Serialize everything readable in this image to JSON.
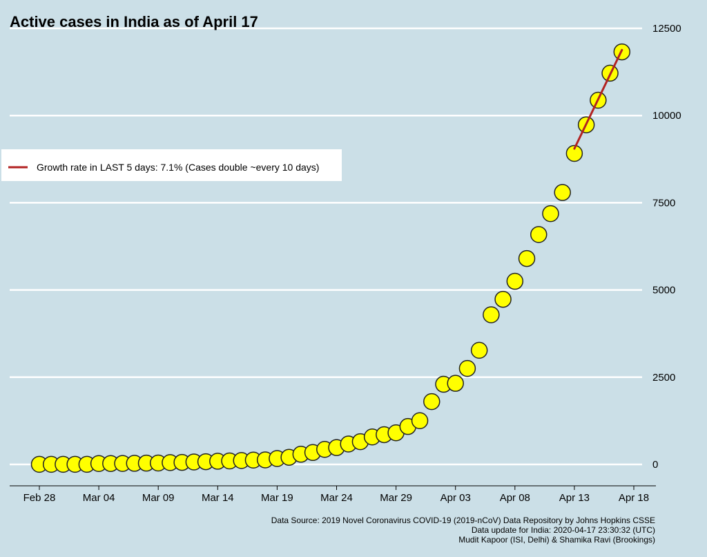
{
  "chart_data": {
    "type": "scatter",
    "title": "Active cases in India as of April 17",
    "xlabel": "",
    "ylabel": "",
    "ylim": [
      -600,
      12500
    ],
    "y_ticks": [
      0,
      2500,
      5000,
      7500,
      10000,
      12500
    ],
    "x_ticks": [
      "Feb 28",
      "Mar 04",
      "Mar 09",
      "Mar 14",
      "Mar 19",
      "Mar 24",
      "Mar 29",
      "Apr 03",
      "Apr 08",
      "Apr 13",
      "Apr 18"
    ],
    "grid": "horizontal",
    "start_date": "2020-02-28",
    "series": [
      {
        "x": [
          "2020-02-28",
          "2020-02-29",
          "2020-03-01",
          "2020-03-02",
          "2020-03-03",
          "2020-03-04",
          "2020-03-05",
          "2020-03-06",
          "2020-03-07",
          "2020-03-08",
          "2020-03-09",
          "2020-03-10",
          "2020-03-11",
          "2020-03-12",
          "2020-03-13",
          "2020-03-14",
          "2020-03-15",
          "2020-03-16",
          "2020-03-17",
          "2020-03-18",
          "2020-03-19",
          "2020-03-20",
          "2020-03-21",
          "2020-03-22",
          "2020-03-23",
          "2020-03-24",
          "2020-03-25",
          "2020-03-26",
          "2020-03-27",
          "2020-03-28",
          "2020-03-29",
          "2020-03-30",
          "2020-03-31",
          "2020-04-01",
          "2020-04-02",
          "2020-04-03",
          "2020-04-04",
          "2020-04-05",
          "2020-04-06",
          "2020-04-07",
          "2020-04-08",
          "2020-04-09",
          "2020-04-10",
          "2020-04-11",
          "2020-04-12",
          "2020-04-13",
          "2020-04-14",
          "2020-04-15",
          "2020-04-16",
          "2020-04-17"
        ],
        "values": [
          3,
          3,
          3,
          3,
          3,
          25,
          26,
          28,
          31,
          36,
          40,
          52,
          58,
          70,
          78,
          91,
          99,
          112,
          124,
          129,
          168,
          204,
          291,
          341,
          431,
          482,
          584,
          652,
          787,
          853,
          906,
          1086,
          1253,
          1800,
          2297,
          2324,
          2751,
          3271,
          4289,
          4733,
          5249,
          5902,
          6590,
          7189,
          7794,
          8914,
          9735,
          10440,
          11214,
          11825
        ]
      },
      {
        "name": "Growth rate in LAST 5 days: 7.1% (Cases double ~every 10 days)",
        "type": "line",
        "x": [
          "2020-04-13",
          "2020-04-17"
        ],
        "values": [
          9050,
          11880
        ]
      }
    ],
    "legend_placement": "left",
    "colors": {
      "points": "#ffff00",
      "point_stroke": "#222222",
      "fit_line": "#b22222",
      "background": "#cbdfe7",
      "grid": "#ffffff"
    }
  },
  "caption": {
    "line1": "Data Source: 2019 Novel Coronavirus COVID-19 (2019-nCoV) Data Repository by Johns Hopkins CSSE",
    "line2": "Data update for India: 2020-04-17 23:30:32 (UTC)",
    "line3": "Mudit Kapoor (ISI, Delhi) & Shamika Ravi (Brookings)"
  }
}
